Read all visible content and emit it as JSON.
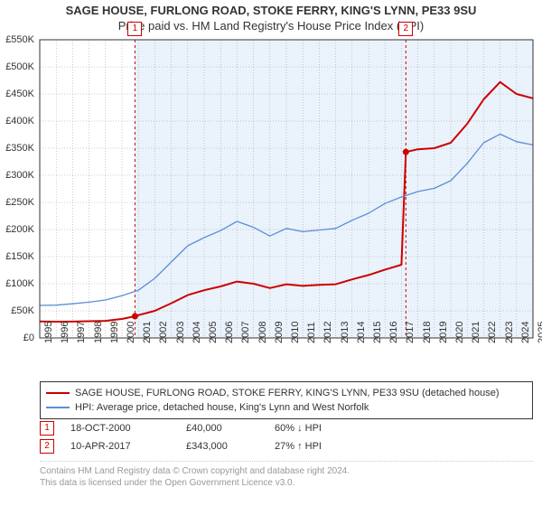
{
  "title": "SAGE HOUSE, FURLONG ROAD, STOKE FERRY, KING'S LYNN, PE33 9SU",
  "subtitle": "Price paid vs. HM Land Registry's House Price Index (HPI)",
  "chart": {
    "type": "line",
    "background_color": "#ffffff",
    "plot_band_color": "#eaf2fb",
    "grid_color": "#999999",
    "axis_color": "#333333",
    "x_start_year": 1995,
    "x_end_year": 2025,
    "ylim": [
      0,
      550000
    ],
    "ytick_step": 50000,
    "ytick_labels": [
      "£0",
      "£50K",
      "£100K",
      "£150K",
      "£200K",
      "£250K",
      "£300K",
      "£350K",
      "£400K",
      "£450K",
      "£500K",
      "£550K"
    ],
    "xtick_years": [
      1995,
      1996,
      1997,
      1998,
      1999,
      2000,
      2001,
      2002,
      2003,
      2004,
      2005,
      2006,
      2007,
      2008,
      2009,
      2010,
      2011,
      2012,
      2013,
      2014,
      2015,
      2016,
      2017,
      2018,
      2019,
      2020,
      2021,
      2022,
      2023,
      2024,
      2025
    ],
    "series": [
      {
        "id": "price_paid",
        "label": "SAGE HOUSE, FURLONG ROAD, STOKE FERRY, KING'S LYNN, PE33 9SU (detached house)",
        "color": "#cc0000",
        "line_width": 2,
        "segments": [
          {
            "points": [
              [
                1995,
                30500
              ],
              [
                1996,
                30000
              ],
              [
                1997,
                30200
              ],
              [
                1998,
                30800
              ],
              [
                1999,
                31500
              ],
              [
                2000,
                35000
              ],
              [
                2000.79,
                40000
              ]
            ]
          },
          {
            "points": [
              [
                2000.79,
                40000
              ],
              [
                2001,
                42000
              ],
              [
                2002,
                50000
              ],
              [
                2003,
                64000
              ],
              [
                2004,
                79000
              ],
              [
                2005,
                88000
              ],
              [
                2006,
                95000
              ],
              [
                2007,
                104000
              ],
              [
                2008,
                100000
              ],
              [
                2009,
                92000
              ],
              [
                2010,
                99000
              ],
              [
                2011,
                96000
              ],
              [
                2012,
                98000
              ],
              [
                2013,
                99000
              ],
              [
                2014,
                108000
              ],
              [
                2015,
                116000
              ],
              [
                2016,
                126000
              ],
              [
                2017,
                135000
              ],
              [
                2017.27,
                343000
              ]
            ]
          },
          {
            "points": [
              [
                2017.27,
                343000
              ],
              [
                2018,
                348000
              ],
              [
                2019,
                350000
              ],
              [
                2020,
                360000
              ],
              [
                2021,
                395000
              ],
              [
                2022,
                440000
              ],
              [
                2023,
                472000
              ],
              [
                2024,
                450000
              ],
              [
                2025,
                442000
              ]
            ]
          }
        ],
        "sale_markers": [
          {
            "n": "1",
            "x": 2000.79,
            "y": 40000
          },
          {
            "n": "2",
            "x": 2017.27,
            "y": 343000
          }
        ]
      },
      {
        "id": "hpi",
        "label": "HPI: Average price, detached house, King's Lynn and West Norfolk",
        "color": "#5b8fd6",
        "line_width": 1.3,
        "segments": [
          {
            "points": [
              [
                1995,
                60000
              ],
              [
                1996,
                60500
              ],
              [
                1997,
                63000
              ],
              [
                1998,
                66000
              ],
              [
                1999,
                70000
              ],
              [
                2000,
                78000
              ],
              [
                2001,
                88000
              ],
              [
                2002,
                110000
              ],
              [
                2003,
                140000
              ],
              [
                2004,
                170000
              ],
              [
                2005,
                185000
              ],
              [
                2006,
                198000
              ],
              [
                2007,
                215000
              ],
              [
                2008,
                204000
              ],
              [
                2009,
                188000
              ],
              [
                2010,
                202000
              ],
              [
                2011,
                196000
              ],
              [
                2012,
                199000
              ],
              [
                2013,
                202000
              ],
              [
                2014,
                217000
              ],
              [
                2015,
                230000
              ],
              [
                2016,
                248000
              ],
              [
                2017,
                260000
              ],
              [
                2018,
                270000
              ],
              [
                2019,
                276000
              ],
              [
                2020,
                290000
              ],
              [
                2021,
                322000
              ],
              [
                2022,
                360000
              ],
              [
                2023,
                376000
              ],
              [
                2024,
                362000
              ],
              [
                2025,
                356000
              ]
            ]
          }
        ]
      }
    ],
    "vlines": [
      {
        "n": "1",
        "x": 2000.79,
        "color": "#cc0000"
      },
      {
        "n": "2",
        "x": 2017.27,
        "color": "#cc0000"
      }
    ],
    "plot_band": {
      "from": 2000.79,
      "to": 2025
    }
  },
  "legend": {
    "row1_color": "#cc0000",
    "row2_color": "#5b8fd6"
  },
  "sales": [
    {
      "n": "1",
      "date": "18-OCT-2000",
      "price": "£40,000",
      "diff": "60%  ↓  HPI"
    },
    {
      "n": "2",
      "date": "10-APR-2017",
      "price": "£343,000",
      "diff": "27%  ↑  HPI"
    }
  ],
  "footer": {
    "line1": "Contains HM Land Registry data © Crown copyright and database right 2024.",
    "line2": "This data is licensed under the Open Government Licence v3.0."
  }
}
